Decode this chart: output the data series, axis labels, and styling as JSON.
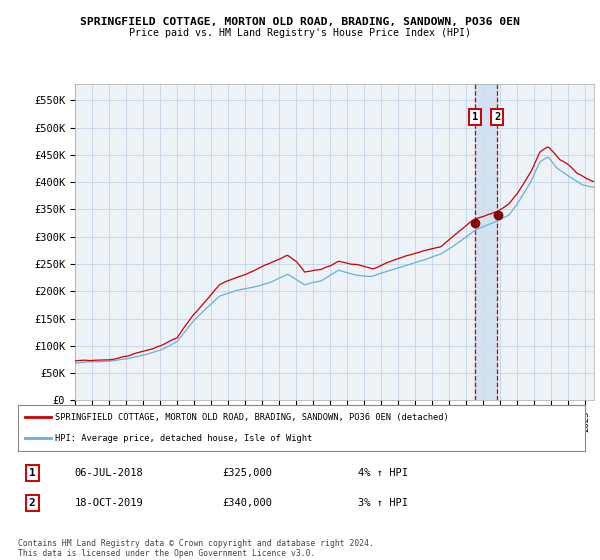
{
  "title1": "SPRINGFIELD COTTAGE, MORTON OLD ROAD, BRADING, SANDOWN, PO36 0EN",
  "title2": "Price paid vs. HM Land Registry's House Price Index (HPI)",
  "ylim": [
    0,
    580000
  ],
  "yticks": [
    0,
    50000,
    100000,
    150000,
    200000,
    250000,
    300000,
    350000,
    400000,
    450000,
    500000,
    550000
  ],
  "ytick_labels": [
    "£0",
    "£50K",
    "£100K",
    "£150K",
    "£200K",
    "£250K",
    "£300K",
    "£350K",
    "£400K",
    "£450K",
    "£500K",
    "£550K"
  ],
  "sale1_date_num": 2018.51,
  "sale1_price": 325000,
  "sale1_label": "1",
  "sale1_date_str": "06-JUL-2018",
  "sale1_pct": "4% ↑ HPI",
  "sale2_date_num": 2019.8,
  "sale2_price": 340000,
  "sale2_label": "2",
  "sale2_date_str": "18-OCT-2019",
  "sale2_pct": "3% ↑ HPI",
  "legend_line1": "SPRINGFIELD COTTAGE, MORTON OLD ROAD, BRADING, SANDOWN, PO36 0EN (detached)",
  "legend_line2": "HPI: Average price, detached house, Isle of Wight",
  "footnote": "Contains HM Land Registry data © Crown copyright and database right 2024.\nThis data is licensed under the Open Government Licence v3.0.",
  "hpi_color": "#6baed6",
  "price_color": "#cc0000",
  "sale_marker_color": "#8b0000",
  "grid_color": "#c8d8e8",
  "bg_color": "#edf2f7",
  "highlight_color": "#cfe0f0",
  "dashed_line_color": "#cc0000",
  "xstart": 1995.0,
  "xend": 2025.5
}
